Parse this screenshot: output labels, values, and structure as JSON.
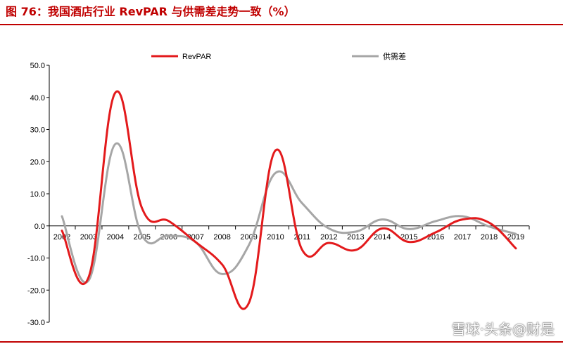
{
  "figure": {
    "title": "图 76：我国酒店行业 RevPAR 与供需差走势一致（%）"
  },
  "watermark": "雪球·头条@财是",
  "colors": {
    "title": "#c00000",
    "revpar": "#e31a1c",
    "supply_demand": "#a6a6a6",
    "axis": "#000000"
  },
  "chart_data": {
    "type": "line",
    "title": "",
    "xlabel": "",
    "ylabel": "",
    "categories": [
      "2002",
      "2003",
      "2004",
      "2005",
      "2006",
      "2007",
      "2008",
      "2009",
      "2010",
      "2011",
      "2012",
      "2013",
      "2014",
      "2015",
      "2016",
      "2017",
      "2018",
      "2019"
    ],
    "ylim": [
      -30,
      50
    ],
    "yticks": [
      "50.0",
      "40.0",
      "30.0",
      "20.0",
      "10.0",
      "0.0",
      "-10.0",
      "-20.0",
      "-30.0"
    ],
    "grid": false,
    "legend_position": "top",
    "series": [
      {
        "name": "RevPAR",
        "values": [
          -1.5,
          -16,
          41.5,
          5.5,
          1.5,
          -5,
          -12,
          -24,
          23.5,
          -7.5,
          -5.3,
          -7.5,
          -0.8,
          -5,
          -2,
          2,
          1,
          -7
        ]
      },
      {
        "name": "供需差",
        "values": [
          3,
          -17,
          25.5,
          -3,
          -3,
          -5,
          -15,
          -6,
          16.5,
          7,
          -0.8,
          -1.8,
          2,
          -1,
          1.5,
          3,
          -0.2,
          -2.5
        ]
      }
    ]
  }
}
